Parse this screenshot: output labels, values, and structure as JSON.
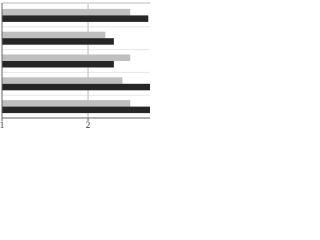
{
  "chart_data": {
    "type": "barh",
    "categories": [
      null,
      null,
      null,
      null,
      null
    ],
    "series": [
      {
        "color": "#bfbfbf",
        "values": [
          2.49,
          2.2,
          2.49,
          2.4,
          2.49
        ]
      },
      {
        "color": "#262626",
        "values": [
          2.7,
          2.3,
          2.3,
          2.72,
          2.72
        ]
      }
    ],
    "xlim": [
      1,
      2.72
    ],
    "xticks": [
      1,
      2
    ],
    "grid": true
  }
}
